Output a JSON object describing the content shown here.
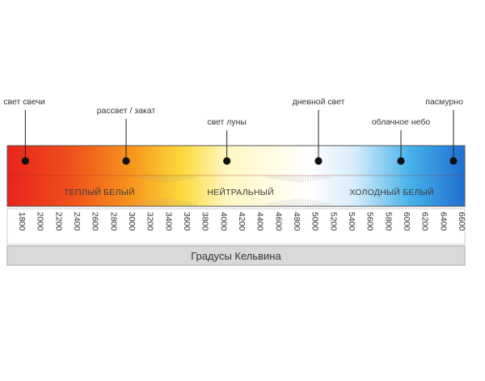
{
  "chart_data": {
    "type": "color-temperature-scale",
    "unit": "K",
    "range": [
      1800,
      6600
    ],
    "xlabel": "Градусы Кельвина",
    "ticks": [
      1800,
      2000,
      2200,
      2400,
      2600,
      2800,
      3000,
      3200,
      3400,
      3600,
      3800,
      4000,
      4200,
      4400,
      4600,
      4800,
      5000,
      5200,
      5400,
      5600,
      5800,
      6000,
      6200,
      6400,
      6600
    ],
    "zones": [
      {
        "label": "ТЕПЛЫЙ БЕЛЫЙ",
        "from": 1800,
        "to": 3300
      },
      {
        "label": "НЕЙТРАЛЬНЫЙ",
        "from": 3300,
        "to": 5200
      },
      {
        "label": "ХОЛОДНЫЙ БЕЛЫЙ",
        "from": 5200,
        "to": 6600
      }
    ],
    "markers": [
      {
        "label": "свет свечи",
        "kelvin": 1900
      },
      {
        "label": "рассвет / закат",
        "kelvin": 3000
      },
      {
        "label": "свет луны",
        "kelvin": 4100
      },
      {
        "label": "дневной свет",
        "kelvin": 5100
      },
      {
        "label": "облачное небо",
        "kelvin": 6000
      },
      {
        "label": "пасмурно",
        "kelvin": 6600
      }
    ],
    "gradient_colors": [
      "#e8231c",
      "#f47a1c",
      "#fbbe1e",
      "#fff7c2",
      "#ffffff",
      "#d6ecfa",
      "#46b2ea",
      "#1f6fd2"
    ]
  }
}
